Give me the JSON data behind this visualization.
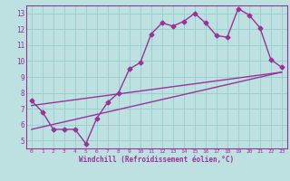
{
  "background_color": "#bde0e0",
  "grid_color": "#99cccc",
  "line_color": "#993399",
  "marker": "D",
  "markersize": 2.5,
  "linewidth": 1.0,
  "xlim": [
    -0.5,
    23.5
  ],
  "ylim": [
    4.5,
    13.5
  ],
  "yticks": [
    5,
    6,
    7,
    8,
    9,
    10,
    11,
    12,
    13
  ],
  "xticks": [
    0,
    1,
    2,
    3,
    4,
    5,
    6,
    7,
    8,
    9,
    10,
    11,
    12,
    13,
    14,
    15,
    16,
    17,
    18,
    19,
    20,
    21,
    22,
    23
  ],
  "xlabel": "Windchill (Refroidissement éolien,°C)",
  "series1_x": [
    0,
    1,
    2,
    3,
    4,
    5,
    6,
    7,
    8,
    9,
    10,
    11,
    12,
    13,
    14,
    15,
    16,
    17,
    18,
    19,
    20,
    21,
    22,
    23
  ],
  "series1_y": [
    7.5,
    6.8,
    5.7,
    5.7,
    5.7,
    4.8,
    6.4,
    7.4,
    8.0,
    9.5,
    9.9,
    11.7,
    12.4,
    12.2,
    12.5,
    13.0,
    12.4,
    11.6,
    11.5,
    13.3,
    12.9,
    12.1,
    10.1,
    9.6
  ],
  "trend1_x": [
    0,
    23
  ],
  "trend1_y": [
    7.2,
    9.3
  ],
  "trend2_x": [
    0,
    23
  ],
  "trend2_y": [
    5.7,
    9.3
  ]
}
